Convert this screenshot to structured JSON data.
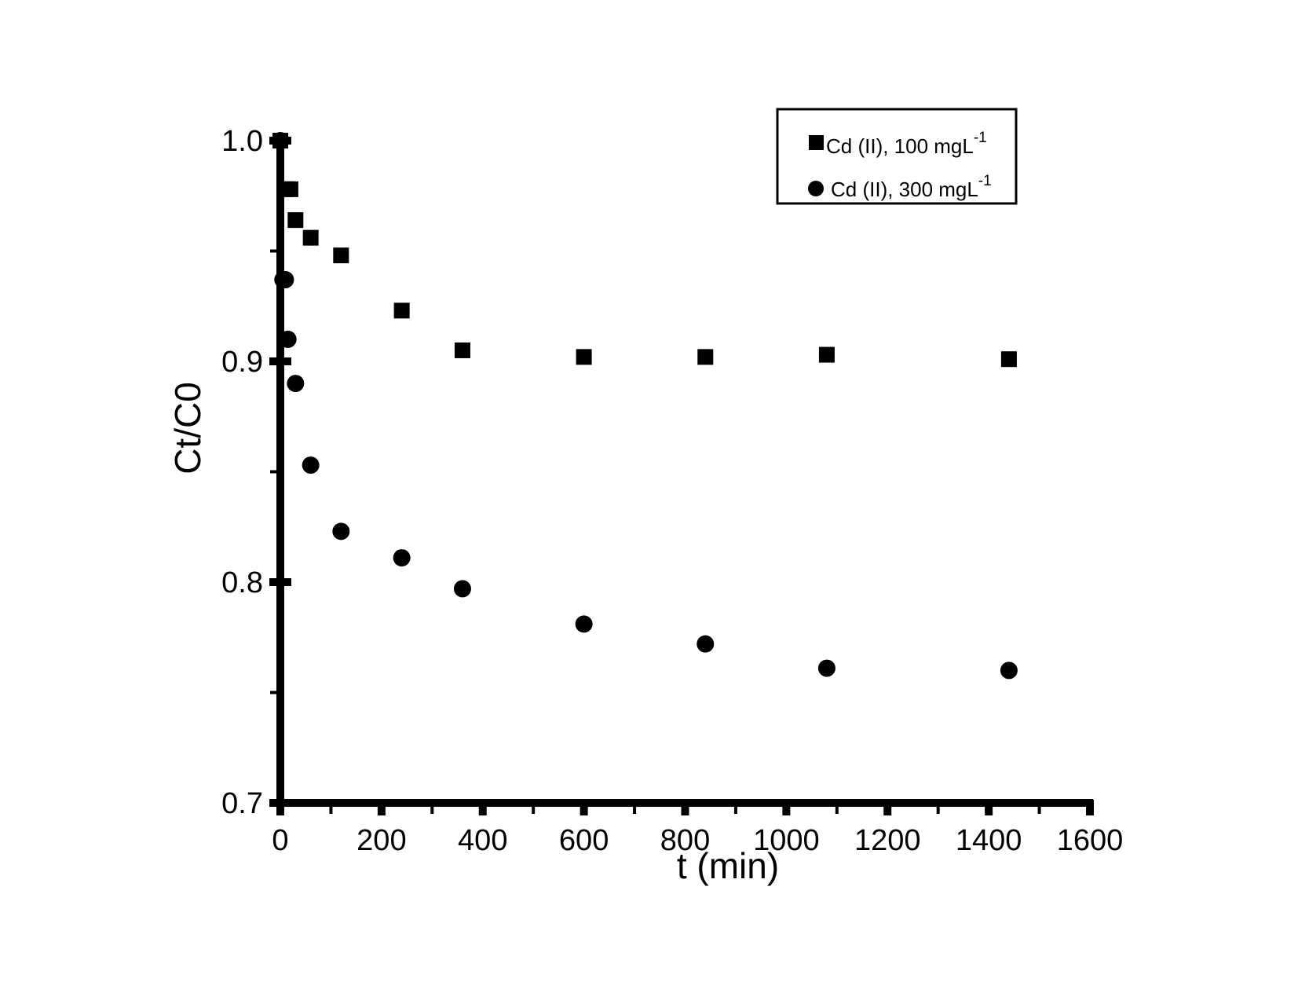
{
  "chart_data": {
    "type": "scatter",
    "title": "",
    "xlabel": "t (min)",
    "ylabel": "Ct/C0",
    "xlim": [
      0,
      1600
    ],
    "ylim": [
      0.7,
      1.0
    ],
    "xticks": [
      0,
      200,
      400,
      600,
      800,
      1000,
      1200,
      1400,
      1600
    ],
    "xtick_labels": [
      "0",
      "200",
      "400",
      "600",
      "800",
      "1000",
      "1200",
      "1400",
      "1600"
    ],
    "yticks": [
      0.7,
      0.8,
      0.9,
      1.0
    ],
    "ytick_labels": [
      "0.7",
      "0.8",
      "0.9",
      "1.0"
    ],
    "grid": false,
    "legend_position": "top-right",
    "series": [
      {
        "name": "Cd (II), 100 mgL",
        "name_sup": "-1",
        "marker": "square",
        "color": "#000000",
        "x": [
          0,
          10,
          20,
          30,
          60,
          120,
          240,
          360,
          600,
          840,
          1080,
          1440
        ],
        "y": [
          1.0,
          0.978,
          0.978,
          0.964,
          0.956,
          0.948,
          0.923,
          0.905,
          0.902,
          0.902,
          0.903,
          0.901
        ]
      },
      {
        "name": "Cd (II), 300 mgL",
        "name_sup": "-1",
        "marker": "circle",
        "color": "#000000",
        "x": [
          0,
          5,
          10,
          15,
          30,
          60,
          120,
          240,
          360,
          600,
          840,
          1080,
          1440
        ],
        "y": [
          1.0,
          0.937,
          0.937,
          0.91,
          0.89,
          0.853,
          0.823,
          0.811,
          0.797,
          0.781,
          0.772,
          0.761,
          0.76
        ]
      }
    ]
  }
}
